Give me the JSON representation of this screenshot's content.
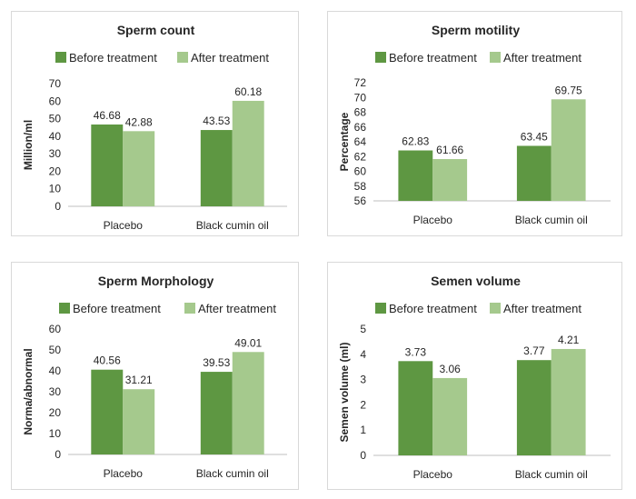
{
  "colors": {
    "before": "#5e9742",
    "after": "#a5c98d",
    "axis": "#bfbfbf",
    "text": "#262626"
  },
  "chart_data": [
    {
      "type": "bar",
      "title": "Sperm count",
      "categories": [
        "Placebo",
        "Black cumin oil"
      ],
      "series": [
        {
          "name": "Before treatment",
          "values": [
            46.68,
            43.53
          ]
        },
        {
          "name": "After treatment",
          "values": [
            42.88,
            60.18
          ]
        }
      ],
      "data_labels": [
        [
          "46.68",
          "43.53"
        ],
        [
          "42.88",
          "60.18"
        ]
      ],
      "ylabel": "Million/ml",
      "ylim": [
        0,
        70
      ],
      "yticks": [
        0,
        10,
        20,
        30,
        40,
        50,
        60,
        70
      ],
      "yticklabels": [
        "0",
        "10",
        "20",
        "30",
        "40",
        "50",
        "60",
        "70"
      ],
      "legend": "top",
      "grid": false
    },
    {
      "type": "bar",
      "title": "Sperm motility",
      "categories": [
        "Placebo",
        "Black cumin oil"
      ],
      "series": [
        {
          "name": "Before treatment",
          "values": [
            62.83,
            63.45
          ]
        },
        {
          "name": "After treatment",
          "values": [
            61.66,
            69.75
          ]
        }
      ],
      "data_labels": [
        [
          "62.83",
          "63.45"
        ],
        [
          "61.66",
          "69.75"
        ]
      ],
      "ylabel": "Percentage",
      "ylim": [
        56,
        72
      ],
      "yticks": [
        56,
        58,
        60,
        62,
        64,
        66,
        68,
        70,
        72
      ],
      "yticklabels": [
        "56",
        "58",
        "60",
        "62",
        "64",
        "66",
        "68",
        "70",
        "72"
      ],
      "legend": "top",
      "grid": false
    },
    {
      "type": "bar",
      "title": "Sperm Morphology",
      "categories": [
        "Placebo",
        "Black cumin oil"
      ],
      "series": [
        {
          "name": "Before treatment",
          "values": [
            40.56,
            39.53
          ]
        },
        {
          "name": "After treatment",
          "values": [
            31.21,
            49.01
          ]
        }
      ],
      "data_labels": [
        [
          "40.56",
          "39.53"
        ],
        [
          "31.21",
          "49.01"
        ]
      ],
      "ylabel": "Norma/abnormal",
      "ylim": [
        0,
        60
      ],
      "yticks": [
        0,
        10,
        20,
        30,
        40,
        50,
        60
      ],
      "yticklabels": [
        "0",
        "10",
        "20",
        "30",
        "40",
        "50",
        "60"
      ],
      "legend": "top",
      "grid": false
    },
    {
      "type": "bar",
      "title": "Semen volume",
      "categories": [
        "Placebo",
        "Black cumin oil"
      ],
      "series": [
        {
          "name": "Before treatment",
          "values": [
            3.73,
            3.77
          ]
        },
        {
          "name": "After treatment",
          "values": [
            3.06,
            4.21
          ]
        }
      ],
      "data_labels": [
        [
          "3.73",
          "3.77"
        ],
        [
          "3.06",
          "4.21"
        ]
      ],
      "ylabel": "Semen volume (ml)",
      "ylim": [
        0,
        5
      ],
      "yticks": [
        0,
        1,
        2,
        3,
        4,
        5
      ],
      "yticklabels": [
        "0",
        "1",
        "2",
        "3",
        "4",
        "5"
      ],
      "legend": "top",
      "grid": false
    }
  ]
}
